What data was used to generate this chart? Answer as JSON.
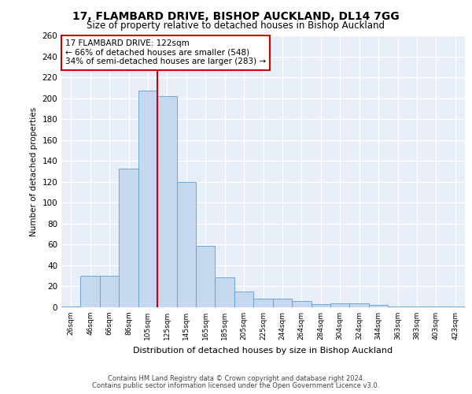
{
  "title1": "17, FLAMBARD DRIVE, BISHOP AUCKLAND, DL14 7GG",
  "title2": "Size of property relative to detached houses in Bishop Auckland",
  "xlabel": "Distribution of detached houses by size in Bishop Auckland",
  "ylabel": "Number of detached properties",
  "categories": [
    "26sqm",
    "46sqm",
    "66sqm",
    "86sqm",
    "105sqm",
    "125sqm",
    "145sqm",
    "165sqm",
    "185sqm",
    "205sqm",
    "225sqm",
    "244sqm",
    "264sqm",
    "284sqm",
    "304sqm",
    "324sqm",
    "344sqm",
    "363sqm",
    "383sqm",
    "403sqm",
    "423sqm"
  ],
  "values": [
    1,
    30,
    30,
    133,
    207,
    202,
    120,
    59,
    29,
    15,
    8,
    8,
    6,
    3,
    4,
    4,
    2,
    1,
    1,
    1,
    1
  ],
  "bar_color": "#c5d8f0",
  "bar_edge_color": "#5a9fd4",
  "highlight_line_color": "#cc0000",
  "annotation_text": "17 FLAMBARD DRIVE: 122sqm\n← 66% of detached houses are smaller (548)\n34% of semi-detached houses are larger (283) →",
  "annotation_box_color": "#ffffff",
  "annotation_box_edge_color": "#cc0000",
  "ylim": [
    0,
    260
  ],
  "yticks": [
    0,
    20,
    40,
    60,
    80,
    100,
    120,
    140,
    160,
    180,
    200,
    220,
    240,
    260
  ],
  "background_color": "#e8eef7",
  "footer1": "Contains HM Land Registry data © Crown copyright and database right 2024.",
  "footer2": "Contains public sector information licensed under the Open Government Licence v3.0."
}
